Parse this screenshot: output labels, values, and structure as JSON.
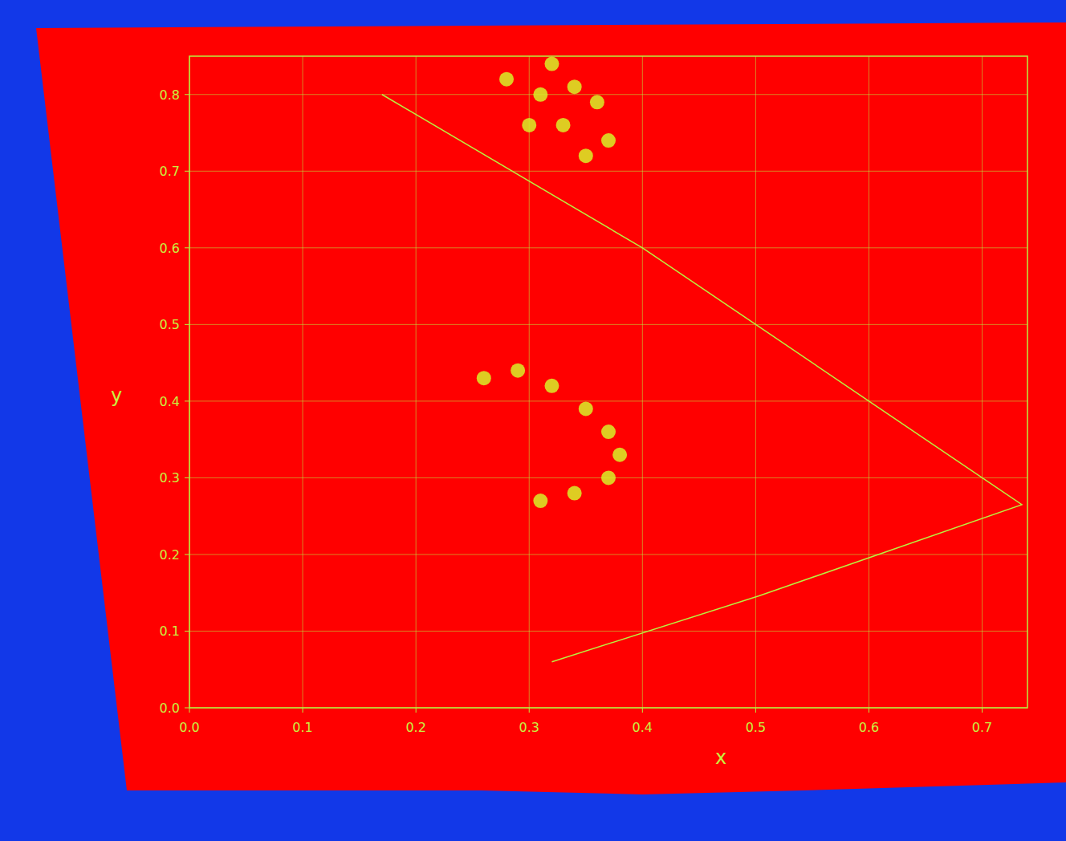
{
  "chart_data": {
    "type": "scatter",
    "x_label": "x",
    "y_label": "y",
    "xlim": [
      0,
      0.74
    ],
    "ylim": [
      0,
      0.85
    ],
    "xticks": [
      {
        "value": 0,
        "label": "0.0"
      },
      0.1,
      0.2,
      0.3,
      0.4,
      0.5,
      0.6,
      0.7
    ],
    "yticks": [
      {
        "value": 0,
        "label": "0.0"
      },
      0.1,
      0.2,
      0.3,
      0.4,
      0.5,
      0.6,
      0.7,
      0.8
    ],
    "grid": true,
    "series": [
      {
        "type": "line",
        "color": "#b8f040",
        "line_style": "solid",
        "x": [
          0.17,
          0.4,
          0.503,
          0.735,
          0.503,
          0.32
        ],
        "values": [
          0.8,
          0.6,
          0.497,
          0.265,
          0.146,
          0.06
        ]
      },
      {
        "type": "scatter",
        "color": "#d8f028",
        "marker": "circle",
        "x": [
          0.26,
          0.29,
          0.32,
          0.35,
          0.37,
          0.38,
          0.37,
          0.34,
          0.31
        ],
        "values": [
          0.43,
          0.44,
          0.42,
          0.39,
          0.36,
          0.33,
          0.3,
          0.28,
          0.27
        ]
      },
      {
        "type": "scatter",
        "color": "#d8f028",
        "marker": "circle",
        "x": [
          0.28,
          0.31,
          0.34,
          0.3,
          0.33,
          0.36,
          0.37,
          0.32,
          0.35
        ],
        "values": [
          0.82,
          0.8,
          0.81,
          0.76,
          0.76,
          0.79,
          0.74,
          0.84,
          0.72
        ]
      }
    ]
  }
}
